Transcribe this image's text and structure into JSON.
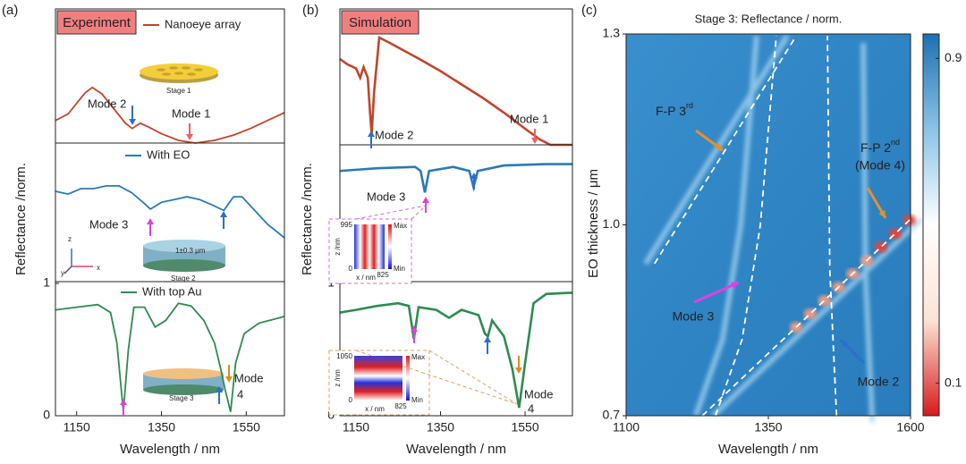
{
  "chart_data": [
    {
      "type": "line",
      "label": "(a)",
      "tag": "Experiment",
      "xlabel": "Wavelength / nm",
      "ylabel": "Reflectance /norm.",
      "xlim": [
        1100,
        1640
      ],
      "xticks": [
        1150,
        1350,
        1550
      ],
      "ylim": [
        0,
        1
      ],
      "yticks": [
        0,
        1
      ],
      "subplots": [
        {
          "series": [
            {
              "name": "Nanoeye array",
              "color": "#c0452b",
              "x": [
                1100,
                1130,
                1150,
                1170,
                1187,
                1210,
                1240,
                1265,
                1281,
                1300,
                1320,
                1350,
                1390,
                1430,
                1475,
                1520,
                1560,
                1600,
                1640
              ],
              "values": [
                0.17,
                0.22,
                0.3,
                0.38,
                0.42,
                0.37,
                0.25,
                0.15,
                0.11,
                0.15,
                0.12,
                0.07,
                0.02,
                0.0,
                0.02,
                0.06,
                0.11,
                0.17,
                0.23
              ]
            }
          ],
          "annotations": [
            "Mode 2",
            "Mode 1",
            "Stage 1"
          ]
        },
        {
          "series": [
            {
              "name": "With EO",
              "color": "#2a7ab8",
              "x": [
                1100,
                1130,
                1160,
                1190,
                1220,
                1250,
                1280,
                1310,
                1324,
                1350,
                1380,
                1410,
                1440,
                1470,
                1497,
                1520,
                1540,
                1570,
                1600,
                1640
              ],
              "values": [
                0.66,
                0.64,
                0.68,
                0.68,
                0.7,
                0.7,
                0.65,
                0.57,
                0.53,
                0.58,
                0.6,
                0.62,
                0.6,
                0.56,
                0.52,
                0.62,
                0.62,
                0.52,
                0.42,
                0.32
              ]
            }
          ],
          "annotations": [
            "Mode 3",
            "1±0.3 μm",
            "Stage 2",
            "z",
            "y",
            "x"
          ]
        },
        {
          "series": [
            {
              "name": "With top Au",
              "color": "#2e8b4f",
              "x": [
                1100,
                1150,
                1200,
                1230,
                1245,
                1260,
                1272,
                1285,
                1310,
                1335,
                1360,
                1390,
                1420,
                1450,
                1475,
                1490,
                1500,
                1513,
                1525,
                1545,
                1580,
                1640
              ],
              "values": [
                0.8,
                0.82,
                0.84,
                0.78,
                0.55,
                0.03,
                0.5,
                0.82,
                0.82,
                0.67,
                0.72,
                0.85,
                0.83,
                0.72,
                0.55,
                0.35,
                0.2,
                0.03,
                0.4,
                0.62,
                0.7,
                0.75
              ]
            }
          ],
          "annotations": [
            "Mode",
            "4",
            "Stage 3"
          ]
        }
      ]
    },
    {
      "type": "line",
      "label": "(b)",
      "tag": "Simulation",
      "xlabel": "Wavelength / nm",
      "ylabel": "Reflectance /norm.",
      "xlim": [
        1112,
        1662
      ],
      "xticks": [
        1150,
        1350,
        1550
      ],
      "ylim": [
        0,
        1
      ],
      "yticks": [
        0,
        1
      ],
      "subplots": [
        {
          "series": [
            {
              "color": "#c0452b",
              "x": [
                1112,
                1130,
                1150,
                1160,
                1168,
                1178,
                1183,
                1187,
                1193,
                1205,
                1230,
                1300,
                1350,
                1400,
                1450,
                1500,
                1550,
                1585,
                1610,
                1662
              ],
              "values": [
                0.64,
                0.6,
                0.57,
                0.5,
                0.58,
                0.5,
                0.25,
                0.08,
                0.4,
                0.8,
                0.76,
                0.64,
                0.55,
                0.45,
                0.35,
                0.24,
                0.12,
                0.04,
                0.0,
                0.0
              ]
            }
          ],
          "annotations": [
            "Mode 2",
            "Mode 1"
          ]
        },
        {
          "series": [
            {
              "color": "#2a7ab8",
              "x": [
                1112,
                1200,
                1290,
                1303,
                1313,
                1323,
                1380,
                1418,
                1428,
                1438,
                1500,
                1600,
                1662
              ],
              "values": [
                0.82,
                0.84,
                0.85,
                0.82,
                0.66,
                0.82,
                0.85,
                0.82,
                0.7,
                0.82,
                0.86,
                0.87,
                0.87
              ]
            }
          ],
          "annotations": [
            "Mode 3"
          ]
        },
        {
          "series": [
            {
              "color": "#2e8b4f",
              "x": [
                1112,
                1150,
                1200,
                1250,
                1275,
                1287,
                1298,
                1340,
                1370,
                1400,
                1440,
                1455,
                1462,
                1472,
                1500,
                1520,
                1536,
                1550,
                1570,
                1600,
                1662
              ],
              "values": [
                0.78,
                0.8,
                0.83,
                0.85,
                0.83,
                0.58,
                0.82,
                0.8,
                0.74,
                0.8,
                0.76,
                0.62,
                0.6,
                0.72,
                0.6,
                0.35,
                0.06,
                0.4,
                0.85,
                0.92,
                0.93
              ]
            }
          ],
          "annotations": [
            "Mode",
            "4"
          ]
        }
      ],
      "insets": [
        {
          "labels": [
            "995",
            "0",
            "825",
            "z /nm",
            "x / nm",
            "Max",
            "Min"
          ]
        },
        {
          "labels": [
            "1050",
            "0",
            "825",
            "z /nm",
            "x / nm",
            "Max",
            "Min"
          ]
        }
      ]
    },
    {
      "type": "heatmap",
      "label": "(c)",
      "title": "Stage 3: Reflectance / norm.",
      "xlabel": "Wavelength / nm",
      "ylabel": "EO thickness  / μm",
      "xlim": [
        1100,
        1600
      ],
      "xticks": [
        1100,
        1350,
        1600
      ],
      "ylim": [
        0.7,
        1.3
      ],
      "yticks": [
        0.7,
        {
          "value": 1.0,
          "label": "1.0"
        },
        1.3
      ],
      "colorbar": {
        "clim": [
          0.02,
          0.96
        ],
        "ticks": [
          0.1,
          0.9
        ],
        "colors": [
          "#d7191c",
          "#fbe3d6",
          "#ffffff",
          "#8cc3e6",
          "#1f6fb4"
        ]
      },
      "lines": [
        {
          "x": [
            1150,
            1399
          ],
          "y": [
            0.939,
            1.297
          ]
        },
        {
          "x": [
            1234,
            1600
          ],
          "y": [
            0.7,
            1.009
          ]
        },
        {
          "x": [
            1257,
            1304,
            1336,
            1364
          ],
          "y": [
            0.7,
            0.82,
            1.0,
            1.297
          ]
        },
        {
          "x": [
            1470,
            1458,
            1454
          ],
          "y": [
            0.7,
            0.93,
            1.297
          ]
        }
      ],
      "annotations": [
        {
          "text": "F-P 3",
          "sup": "rd"
        },
        {
          "text": "F-P 2",
          "sup": "nd"
        },
        "(Mode 4)",
        "Mode 3",
        "Mode 2"
      ]
    }
  ]
}
